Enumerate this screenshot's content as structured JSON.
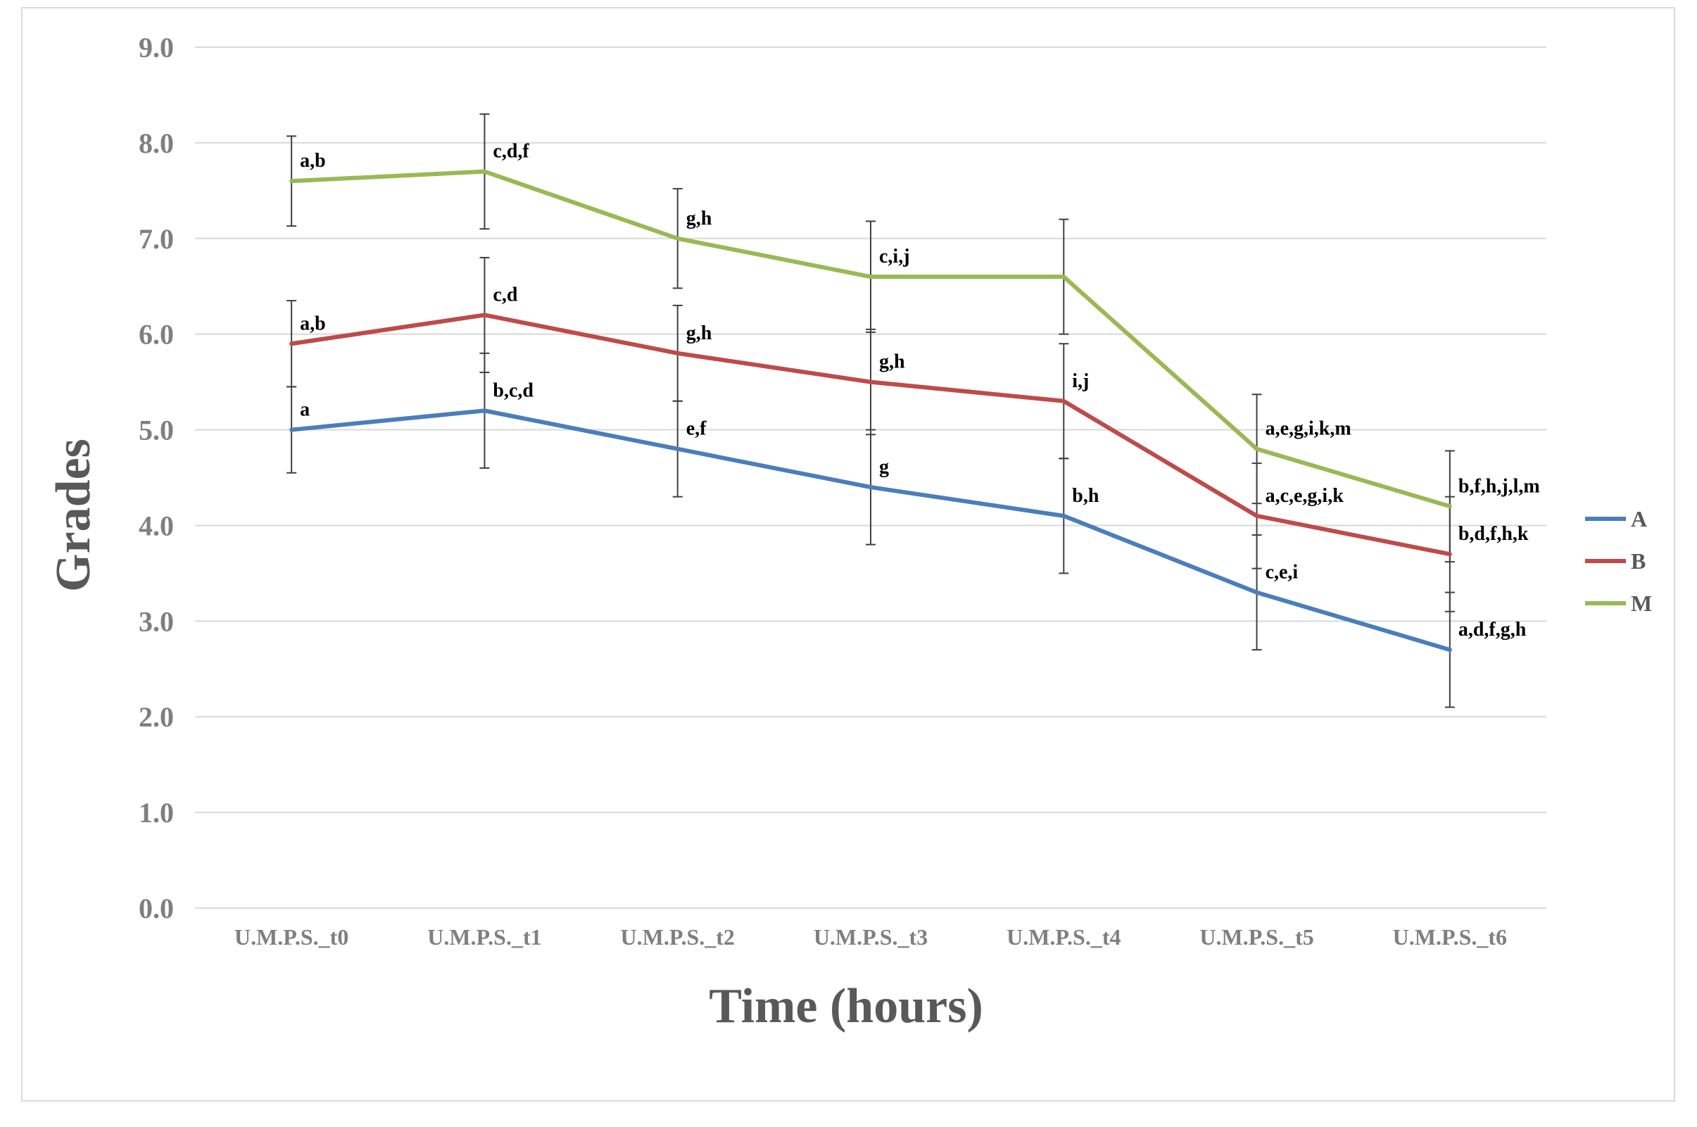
{
  "chart_data": {
    "type": "line",
    "title": "",
    "xlabel": "Time (hours)",
    "ylabel": "Grades",
    "ylim": [
      0,
      9
    ],
    "yticks": [
      "0.0",
      "1.0",
      "2.0",
      "3.0",
      "4.0",
      "5.0",
      "6.0",
      "7.0",
      "8.0",
      "9.0"
    ],
    "categories": [
      "U.M.P.S._t0",
      "U.M.P.S._t1",
      "U.M.P.S._t2",
      "U.M.P.S._t3",
      "U.M.P.S._t4",
      "U.M.P.S._t5",
      "U.M.P.S._t6"
    ],
    "grid": true,
    "legend_position": "right",
    "series": [
      {
        "name": "A",
        "color": "#4a7ebb",
        "values": [
          5.0,
          5.2,
          4.8,
          4.4,
          4.1,
          3.3,
          2.7
        ],
        "errors": [
          0.45,
          0.6,
          0.5,
          0.6,
          0.6,
          0.6,
          0.6
        ],
        "labels": [
          "a",
          "b,c,d",
          "e,f",
          "g",
          "b,h",
          "c,e,i",
          "a,d,f,g,h"
        ]
      },
      {
        "name": "B",
        "color": "#be4b48",
        "values": [
          5.9,
          6.2,
          5.8,
          5.5,
          5.3,
          4.1,
          3.7
        ],
        "errors": [
          0.45,
          0.6,
          0.5,
          0.55,
          0.6,
          0.55,
          0.6
        ],
        "labels": [
          "a,b",
          "c,d",
          "g,h",
          "g,h",
          "i,j",
          "a,c,e,g,i,k",
          "b,d,f,h,k"
        ]
      },
      {
        "name": "M",
        "color": "#98b954",
        "values": [
          7.6,
          7.7,
          7.0,
          6.6,
          6.6,
          4.8,
          4.2
        ],
        "errors": [
          0.47,
          0.6,
          0.52,
          0.58,
          0.6,
          0.57,
          0.58
        ],
        "labels": [
          "a,b",
          "c,d,f",
          "g,h",
          "c,i,j",
          "",
          "a,e,g,i,k,m",
          "b,f,h,j,l,m"
        ]
      }
    ]
  }
}
